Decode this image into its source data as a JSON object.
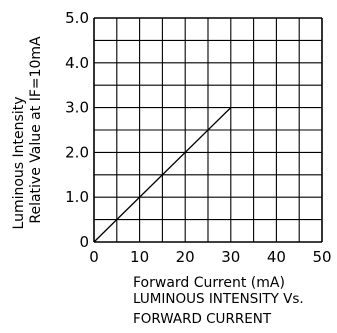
{
  "chart_data": {
    "type": "line",
    "title": "LUMINOUS INTENSITY Vs. FORWARD CURRENT",
    "title_lines": [
      "LUMINOUS INTENSITY Vs.",
      "FORWARD CURRENT"
    ],
    "xlabel": "Forward Current (mA)",
    "ylabel_lines": [
      "Luminous Intensity",
      "Relative Value at IF=10mA"
    ],
    "xlim": [
      0,
      50
    ],
    "ylim": [
      0,
      5.0
    ],
    "x_ticks": [
      0,
      10,
      20,
      30,
      40,
      50
    ],
    "y_tick_labels": [
      "0",
      "1.0",
      "2.0",
      "3.0",
      "4.0",
      "5.0"
    ],
    "y_tick_values": [
      0,
      1.0,
      2.0,
      3.0,
      4.0,
      5.0
    ],
    "x_grid_step": 5,
    "y_grid_step": 0.5,
    "grid": true,
    "series": [
      {
        "x": [
          0,
          30
        ],
        "y": [
          0,
          3.0
        ]
      }
    ]
  }
}
